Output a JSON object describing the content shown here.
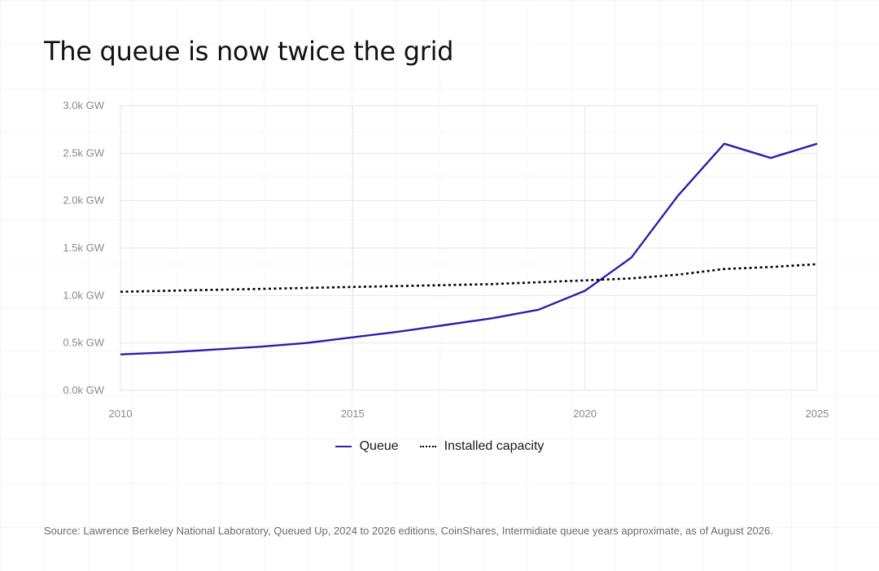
{
  "title": "The queue is now twice the grid",
  "source": "Source: Lawrence Berkeley National Laboratory, Queued Up, 2024 to 2026 editions, CoinShares, Intermidiate queue years approximate, as of August 2026.",
  "colors": {
    "queue": "#2d1fa8",
    "installed": "#000000",
    "grid": "#e6e6e6",
    "tick_text": "#8a8a8a"
  },
  "legend": {
    "queue_label": "Queue",
    "installed_label": "Installed capacity"
  },
  "chart_data": {
    "type": "line",
    "title": "The queue is now twice the grid",
    "xlabel": "",
    "ylabel": "",
    "xlim": [
      2010,
      2025
    ],
    "ylim": [
      0,
      3000
    ],
    "x_ticks": [
      2010,
      2015,
      2020,
      2025
    ],
    "x_tick_labels": [
      "2010",
      "2015",
      "2020",
      "2025"
    ],
    "y_ticks": [
      0,
      500,
      1000,
      1500,
      2000,
      2500,
      3000
    ],
    "y_tick_labels": [
      "0.0k GW",
      "0.5k GW",
      "1.0k GW",
      "1.5k GW",
      "2.0k GW",
      "2.5k GW",
      "3.0k GW"
    ],
    "grid": true,
    "legend_position": "bottom-center",
    "series": [
      {
        "name": "Queue",
        "style": "solid",
        "color": "#2d1fa8",
        "x": [
          2010,
          2011,
          2012,
          2013,
          2014,
          2015,
          2016,
          2017,
          2018,
          2019,
          2020,
          2021,
          2022,
          2023,
          2024,
          2025
        ],
        "y": [
          380,
          400,
          430,
          460,
          500,
          560,
          620,
          690,
          760,
          850,
          1050,
          1400,
          2050,
          2600,
          2450,
          2600
        ]
      },
      {
        "name": "Installed capacity",
        "style": "dotted",
        "color": "#000000",
        "x": [
          2010,
          2011,
          2012,
          2013,
          2014,
          2015,
          2016,
          2017,
          2018,
          2019,
          2020,
          2021,
          2022,
          2023,
          2024,
          2025
        ],
        "y": [
          1040,
          1050,
          1060,
          1070,
          1080,
          1090,
          1100,
          1110,
          1120,
          1140,
          1160,
          1180,
          1220,
          1280,
          1300,
          1330
        ]
      }
    ]
  }
}
